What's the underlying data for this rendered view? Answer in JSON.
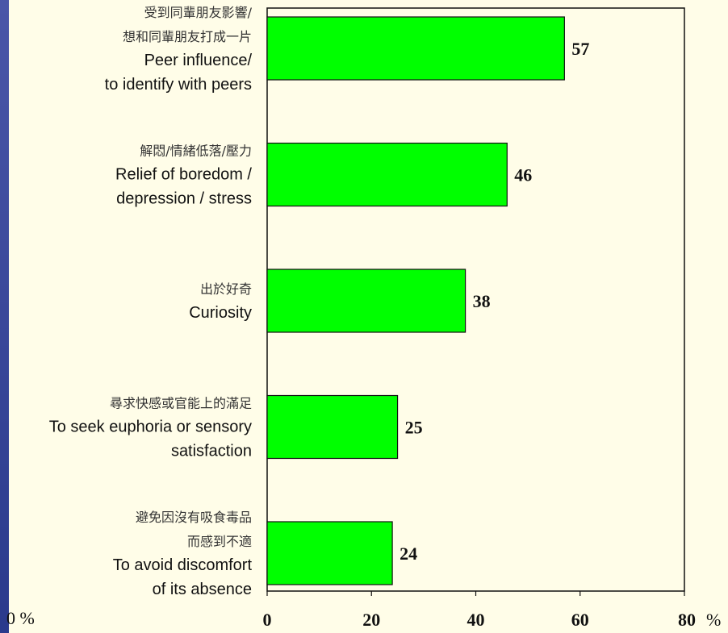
{
  "chart_data": {
    "type": "bar",
    "orientation": "horizontal",
    "categories": [
      {
        "zh": [
          "受到同輩朋友影響/",
          "想和同輩朋友打成一片"
        ],
        "en": [
          "Peer influence/",
          "to identify with peers"
        ]
      },
      {
        "zh": [
          "解悶/情緒低落/壓力"
        ],
        "en": [
          "Relief of boredom /",
          "depression / stress"
        ]
      },
      {
        "zh": [
          "出於好奇"
        ],
        "en": [
          "Curiosity"
        ]
      },
      {
        "zh": [
          "尋求快感或官能上的滿足"
        ],
        "en": [
          "To seek euphoria or sensory",
          "satisfaction"
        ]
      },
      {
        "zh": [
          "避免因沒有吸食毒品",
          "而感到不適"
        ],
        "en": [
          "To avoid discomfort",
          "of its absence"
        ]
      }
    ],
    "values": [
      57,
      46,
      38,
      25,
      24
    ],
    "xlim": [
      0,
      80
    ],
    "xticks": [
      0,
      20,
      40,
      60,
      80
    ],
    "left_axis_label": "0 %",
    "right_axis_label": "%",
    "bar_color": "#00ff00"
  }
}
